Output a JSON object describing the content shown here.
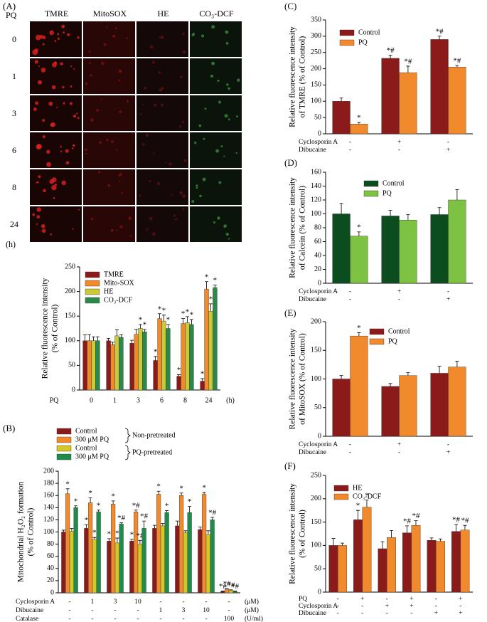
{
  "image_panel": {
    "label": "(A)",
    "row_header": "PQ",
    "columns": [
      "TMRE",
      "MitoSOX",
      "HE",
      "CO₃-DCF"
    ],
    "rows": [
      "0",
      "1",
      "3",
      "6",
      "8",
      "24"
    ],
    "unit": "(h)"
  },
  "chart_data": [
    {
      "type": "bar",
      "ylabel": [
        "Relative fluorescence intensity",
        "(% of Control)"
      ],
      "xlabel": "PQ",
      "xunit": "(h)",
      "categories": [
        "0",
        "1",
        "3",
        "6",
        "8",
        "24"
      ],
      "ylim": [
        0,
        250
      ],
      "yticks": [
        0,
        50,
        100,
        150,
        200,
        250
      ],
      "series": [
        {
          "name": "TMRE",
          "color": "#8b1a1a",
          "values": [
            100,
            100,
            95,
            60,
            28,
            18
          ],
          "errors": [
            12,
            5,
            6,
            8,
            3,
            5
          ],
          "annotations": [
            null,
            null,
            null,
            "*",
            "*",
            "*"
          ]
        },
        {
          "name": "Mito-SOX",
          "color": "#f08a2c",
          "values": [
            100,
            92,
            113,
            145,
            135,
            205
          ],
          "errors": [
            12,
            5,
            10,
            10,
            10,
            15
          ],
          "annotations": [
            null,
            null,
            null,
            "*",
            "*",
            "*"
          ]
        },
        {
          "name": "HE",
          "color": "#c9c93a",
          "values": [
            100,
            110,
            125,
            140,
            137,
            160
          ],
          "errors": [
            8,
            12,
            8,
            12,
            12,
            15
          ],
          "annotations": [
            null,
            null,
            "*",
            "*",
            "*",
            "*"
          ]
        },
        {
          "name": "CO₃-DCF",
          "color": "#2b8a4a",
          "values": [
            100,
            107,
            118,
            125,
            133,
            208
          ],
          "errors": [
            8,
            5,
            5,
            8,
            10,
            5
          ],
          "annotations": [
            null,
            null,
            "*",
            "*",
            "*",
            "*"
          ]
        }
      ]
    },
    {
      "type": "bar",
      "panel": "(B)",
      "ylabel": [
        "Mitochondrial H₂O₂ formation",
        "(% of Control)"
      ],
      "ylim": [
        0,
        200
      ],
      "yticks": [
        0,
        20,
        40,
        60,
        80,
        100,
        120,
        140,
        160,
        180,
        200
      ],
      "legend_groups": [
        "Non-pretreated",
        "PQ-pretreated"
      ],
      "conditions": [
        {
          "name": "Cyclosporin A",
          "unit": "(μM)",
          "values": [
            "-",
            "1",
            "3",
            "10",
            "-",
            "-",
            "-",
            "-"
          ]
        },
        {
          "name": "Dibucaine",
          "unit": "(μM)",
          "values": [
            "-",
            "-",
            "-",
            "-",
            "1",
            "3",
            "10",
            "-"
          ]
        },
        {
          "name": "Catalase",
          "unit": "(U/ml)",
          "values": [
            "-",
            "-",
            "-",
            "-",
            "-",
            "-",
            "-",
            "100"
          ]
        }
      ],
      "series": [
        {
          "name": "Control",
          "color": "#8b1a1a",
          "values": [
            100,
            106,
            85,
            85,
            106,
            110,
            104,
            2
          ],
          "errors": [
            3,
            6,
            4,
            3,
            5,
            8,
            4,
            1
          ],
          "annotations": [
            null,
            "*",
            "*",
            "*",
            null,
            null,
            null,
            "*#"
          ]
        },
        {
          "name": "300 μM PQ",
          "color": "#f08a2c",
          "values": [
            163,
            148,
            146,
            133,
            162,
            160,
            162,
            6
          ],
          "errors": [
            8,
            8,
            5,
            3,
            5,
            4,
            3,
            1
          ],
          "annotations": [
            "*",
            "*",
            "*",
            "*#",
            "*",
            "*",
            "*",
            "*#"
          ]
        },
        {
          "name": "Control",
          "color": "#d4c829",
          "values": [
            101,
            88,
            82,
            80,
            110,
            99,
            96,
            4
          ],
          "errors": [
            5,
            3,
            8,
            6,
            4,
            3,
            6,
            1
          ],
          "annotations": [
            null,
            "*",
            "*",
            "*#",
            null,
            null,
            null,
            "*#"
          ]
        },
        {
          "name": "300 μM PQ",
          "color": "#1e8b4b",
          "values": [
            140,
            133,
            113,
            106,
            132,
            132,
            120,
            2
          ],
          "errors": [
            3,
            3,
            2,
            12,
            3,
            10,
            4,
            1
          ],
          "annotations": [
            "*",
            "*",
            "*#",
            "*#",
            "*",
            "*",
            "*#",
            "*#"
          ]
        }
      ]
    },
    {
      "type": "bar",
      "panel": "(C)",
      "ylabel": [
        "Relative fluorescence intensity",
        "of TMRE (% of Control)"
      ],
      "ylim": [
        0,
        350
      ],
      "yticks": [
        0,
        50,
        100,
        150,
        200,
        250,
        300,
        350
      ],
      "conditions": [
        {
          "name": "Cyclosporin A",
          "values": [
            "-",
            "+",
            "-"
          ]
        },
        {
          "name": "Dibucaine",
          "values": [
            "-",
            "-",
            "+"
          ]
        }
      ],
      "series": [
        {
          "name": "Control",
          "color": "#8b1a1a",
          "values": [
            100,
            232,
            290
          ],
          "errors": [
            10,
            10,
            10
          ],
          "annotations": [
            null,
            "*#",
            "*#"
          ]
        },
        {
          "name": "PQ",
          "color": "#f08a2c",
          "values": [
            30,
            188,
            205
          ],
          "errors": [
            5,
            20,
            5
          ],
          "annotations": [
            "*",
            "*#",
            "*#"
          ]
        }
      ]
    },
    {
      "type": "bar",
      "panel": "(D)",
      "ylabel": [
        "Relative fluorescence intensity",
        "of Calcein (% of Control)"
      ],
      "ylim": [
        0,
        160
      ],
      "yticks": [
        0,
        20,
        40,
        60,
        80,
        100,
        120,
        140,
        160
      ],
      "conditions": [
        {
          "name": "Cyclosporin A",
          "values": [
            "-",
            "+",
            "-"
          ]
        },
        {
          "name": "Dibucaine",
          "values": [
            "-",
            "-",
            "+"
          ]
        }
      ],
      "series": [
        {
          "name": "Control",
          "color": "#0b4d1f",
          "values": [
            100,
            97,
            99
          ],
          "errors": [
            15,
            8,
            10
          ],
          "annotations": [
            null,
            null,
            null
          ]
        },
        {
          "name": "PQ",
          "color": "#7dc242",
          "values": [
            68,
            91,
            120
          ],
          "errors": [
            6,
            8,
            15
          ],
          "annotations": [
            "*",
            null,
            null
          ]
        }
      ]
    },
    {
      "type": "bar",
      "panel": "(E)",
      "ylabel": [
        "Relative fluorescence intensity",
        "of MitoSOX (% of Control)"
      ],
      "ylim": [
        0,
        200
      ],
      "yticks": [
        0,
        50,
        100,
        150,
        200
      ],
      "conditions": [
        {
          "name": "Cyclosporin A",
          "values": [
            "-",
            "+",
            "-"
          ]
        },
        {
          "name": "Dibucaine",
          "values": [
            "-",
            "-",
            "+"
          ]
        }
      ],
      "series": [
        {
          "name": "Control",
          "color": "#8b1a1a",
          "values": [
            100,
            87,
            110
          ],
          "errors": [
            6,
            5,
            12
          ],
          "annotations": [
            null,
            null,
            null
          ]
        },
        {
          "name": "PQ",
          "color": "#f08a2c",
          "values": [
            175,
            106,
            121
          ],
          "errors": [
            6,
            5,
            10
          ],
          "annotations": [
            "*",
            null,
            null
          ]
        }
      ]
    },
    {
      "type": "bar",
      "panel": "(F)",
      "ylabel": [
        "Relative fluorescence intensity",
        "(% of Control)"
      ],
      "ylim": [
        0,
        250
      ],
      "yticks": [
        0,
        50,
        100,
        150,
        200,
        250
      ],
      "conditions": [
        {
          "name": "PQ",
          "values": [
            "-",
            "+",
            "-",
            "+",
            "-",
            "+"
          ]
        },
        {
          "name": "Cyclosporin A",
          "values": [
            "-",
            "-",
            "+",
            "+",
            "-",
            "-"
          ]
        },
        {
          "name": "Dibucaine",
          "values": [
            "-",
            "-",
            "-",
            "-",
            "+",
            "+"
          ]
        }
      ],
      "series": [
        {
          "name": "HE",
          "color": "#8b1a1a",
          "values": [
            100,
            155,
            93,
            127,
            111,
            130
          ],
          "errors": [
            15,
            20,
            15,
            15,
            5,
            15
          ],
          "annotations": [
            null,
            "*",
            null,
            "*#",
            null,
            "*#"
          ]
        },
        {
          "name": "CO₃-DCF",
          "color": "#f08a2c",
          "values": [
            100,
            182,
            117,
            143,
            109,
            133
          ],
          "errors": [
            5,
            15,
            15,
            10,
            5,
            10
          ],
          "annotations": [
            null,
            "*",
            null,
            "*#",
            null,
            "*#"
          ]
        }
      ]
    }
  ]
}
